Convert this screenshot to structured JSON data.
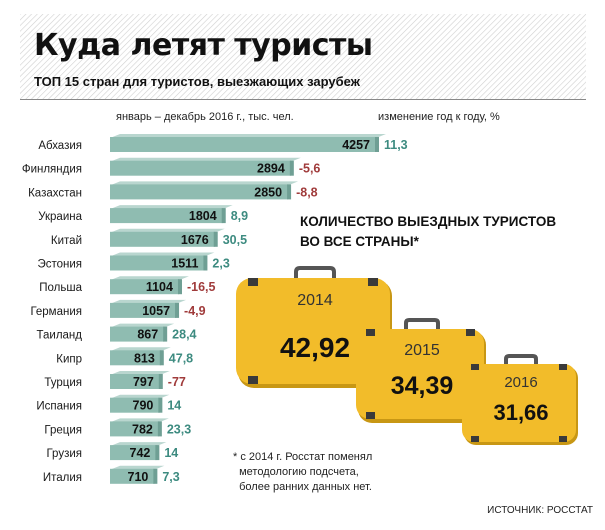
{
  "header": {
    "title": "Куда летят туристы",
    "subtitle": "ТОП 15 стран для туристов, выезжающих зарубеж",
    "col_left": "январь – декабрь 2016 г., тыс. чел.",
    "col_right": "изменение год к году, %"
  },
  "chart_data": {
    "type": "bar",
    "orientation": "horizontal",
    "categories": [
      "Абхазия",
      "Финляндия",
      "Казахстан",
      "Украина",
      "Китай",
      "Эстония",
      "Польша",
      "Германия",
      "Таиланд",
      "Кипр",
      "Турция",
      "Испания",
      "Греция",
      "Грузия",
      "Италия"
    ],
    "series": [
      {
        "name": "январь – декабрь 2016 г., тыс. чел.",
        "values": [
          4257,
          2894,
          2850,
          1804,
          1676,
          1511,
          1104,
          1057,
          867,
          813,
          797,
          790,
          782,
          742,
          710
        ],
        "color": "#8fbcb1"
      }
    ],
    "value_labels": [
      "4257",
      "2894",
      "2850",
      "1804",
      "1676",
      "1511",
      "1104",
      "1057",
      "867",
      "813",
      "797",
      "790",
      "782",
      "742",
      "710"
    ],
    "change_labels": [
      "11,3",
      "-5,6",
      "-8,8",
      "8,9",
      "30,5",
      "2,3",
      "-16,5",
      "-4,9",
      "28,4",
      "47,8",
      "-77",
      "14",
      "23,3",
      "14",
      "7,3"
    ],
    "change_values": [
      11.3,
      -5.6,
      -8.8,
      8.9,
      30.5,
      2.3,
      -16.5,
      -4.9,
      28.4,
      47.8,
      -77,
      14,
      23.3,
      14,
      7.3
    ],
    "colors": {
      "bar": "#8fbcb1",
      "positive": "#3d8b80",
      "negative": "#a03b3b"
    },
    "xlim": [
      0,
      4257
    ]
  },
  "totals": {
    "label": "КОЛИЧЕСТВО ВЫЕЗДНЫХ ТУРИСТОВ ВО ВСЕ СТРАНЫ*",
    "items": [
      {
        "year": "2014",
        "value": "42,92"
      },
      {
        "year": "2015",
        "value": "34,39"
      },
      {
        "year": "2016",
        "value": "31,66"
      }
    ],
    "color": "#f2bc2a"
  },
  "footnote": "* с 2014 г. Росстат поменял\n  методологию подсчета,\n  более ранних данных нет.",
  "source": "ИСТОЧНИК: РОССТАТ"
}
